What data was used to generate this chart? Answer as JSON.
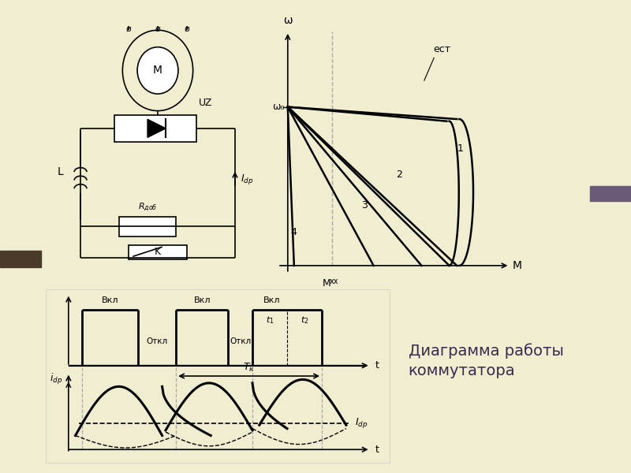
{
  "bg_color": "#f0edd0",
  "white": "#ffffff",
  "black": "#000000",
  "gray": "#aaaaaa",
  "dark_gray": "#555555",
  "title_text": "Диаграмма работы\nкоммутатора",
  "title_fontsize": 14,
  "omega_label": "ω",
  "omega_0_label": "ω₀",
  "M_label": "M",
  "Mxx_label": "Mхх",
  "ect_label": "ест",
  "t_label": "t",
  "Vkl_label": "Вкл",
  "Otkl_label": "Откл",
  "left_bar_color": "#4a3a2a",
  "right_bar_color": "#6a5a7a"
}
